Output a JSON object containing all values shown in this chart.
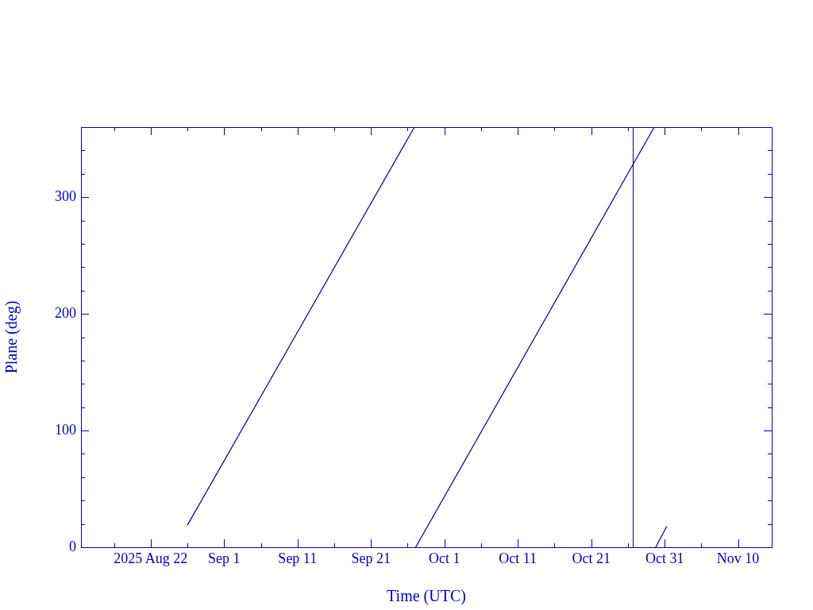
{
  "chart_data": {
    "type": "line",
    "xlabel": "Time (UTC)",
    "ylabel": "Plane (deg)",
    "xlim": [
      "2025-08-12T12:00",
      "2025-11-14T14:00"
    ],
    "xticks": [
      {
        "value": "2025-08-17",
        "label": null
      },
      {
        "value": "2025-08-22",
        "label": "2025 Aug 22"
      },
      {
        "value": "2025-08-27",
        "label": null
      },
      {
        "value": "2025-09-01",
        "label": "Sep 1"
      },
      {
        "value": "2025-09-06",
        "label": null
      },
      {
        "value": "2025-09-11",
        "label": "Sep 11"
      },
      {
        "value": "2025-09-16",
        "label": null
      },
      {
        "value": "2025-09-21",
        "label": "Sep 21"
      },
      {
        "value": "2025-09-26",
        "label": null
      },
      {
        "value": "2025-10-01",
        "label": "Oct 1"
      },
      {
        "value": "2025-10-06",
        "label": null
      },
      {
        "value": "2025-10-11",
        "label": "Oct 11"
      },
      {
        "value": "2025-10-16",
        "label": null
      },
      {
        "value": "2025-10-21",
        "label": "Oct 21"
      },
      {
        "value": "2025-10-26",
        "label": null
      },
      {
        "value": "2025-10-31",
        "label": "Oct 31"
      },
      {
        "value": "2025-11-05",
        "label": null
      },
      {
        "value": "2025-11-10",
        "label": "Nov 10"
      }
    ],
    "ylim": [
      0,
      360
    ],
    "yticks": [
      0,
      {
        "value": 20,
        "label": null
      },
      {
        "value": 40,
        "label": null
      },
      {
        "value": 60,
        "label": null
      },
      {
        "value": 80,
        "label": null
      },
      100,
      {
        "value": 120,
        "label": null
      },
      {
        "value": 140,
        "label": null
      },
      {
        "value": 160,
        "label": null
      },
      {
        "value": 180,
        "label": null
      },
      200,
      {
        "value": 220,
        "label": null
      },
      {
        "value": 240,
        "label": null
      },
      {
        "value": 260,
        "label": null
      },
      {
        "value": 280,
        "label": null
      },
      300,
      {
        "value": 320,
        "label": null
      },
      {
        "value": 340,
        "label": null
      },
      {
        "value": 360,
        "label": null
      }
    ],
    "series": [
      {
        "color": "#000080",
        "x": [
          "2025-08-27T00:00",
          "2025-09-26T22:00"
        ],
        "values": [
          19,
          360
        ]
      },
      {
        "color": "#000080",
        "x": [
          "2025-09-27T02:00",
          "2025-10-29T14:00"
        ],
        "values": [
          0,
          360
        ]
      },
      {
        "color": "#000080",
        "x": [
          "2025-10-29T19:00",
          "2025-10-31T07:00"
        ],
        "values": [
          0,
          18
        ]
      }
    ],
    "ref_lines": [
      {
        "axis": "x",
        "value": "2025-10-26T17:00",
        "color": "#000080"
      }
    ],
    "grid": false,
    "legend": false,
    "marker": "none",
    "line_style": "solid"
  }
}
